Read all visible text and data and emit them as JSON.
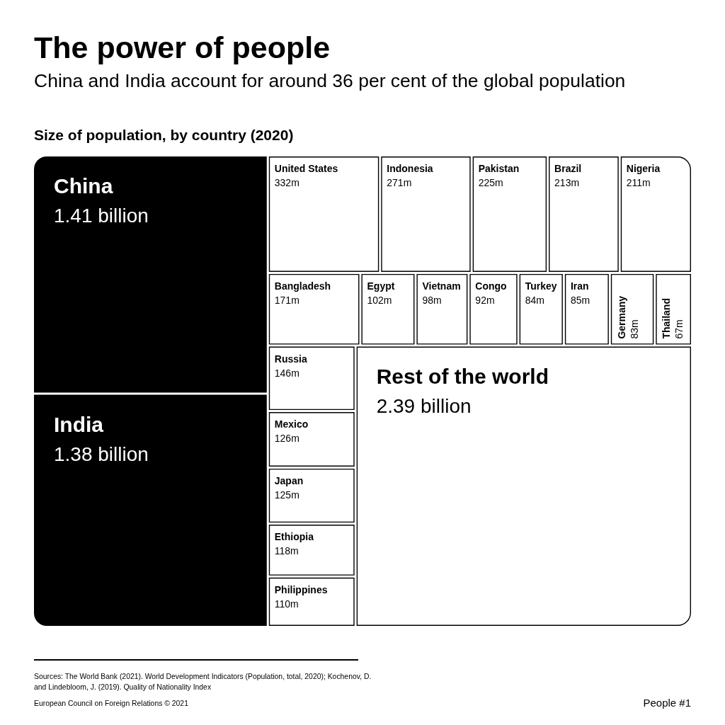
{
  "chart_data": {
    "type": "other",
    "title": "The power of people",
    "subtitle": "China and India account for around 36 per cent of the global population",
    "categories": [
      "China",
      "India",
      "United States",
      "Indonesia",
      "Pakistan",
      "Brazil",
      "Nigeria",
      "Bangladesh",
      "Egypt",
      "Vietnam",
      "Congo",
      "Turkey",
      "Iran",
      "Germany",
      "Thailand",
      "Russia",
      "Mexico",
      "Japan",
      "Ethiopia",
      "Philippines",
      "Rest of the world"
    ],
    "values": [
      1410000000,
      1380000000,
      332000000,
      271000000,
      225000000,
      213000000,
      211000000,
      171000000,
      102000000,
      98000000,
      92000000,
      84000000,
      85000000,
      83000000,
      67000000,
      146000000,
      126000000,
      125000000,
      118000000,
      110000000,
      2390000000
    ],
    "value_labels": [
      "1.41 billion",
      "1.38 billion",
      "332m",
      "271m",
      "225m",
      "213m",
      "211m",
      "171m",
      "102m",
      "98m",
      "92m",
      "84m",
      "85m",
      "83m",
      "67m",
      "146m",
      "126m",
      "125m",
      "118m",
      "110m",
      "2.39 billion"
    ],
    "colors": [
      "#000000",
      "#000000",
      "#ffffff",
      "#ffffff",
      "#ffffff",
      "#ffffff",
      "#ffffff",
      "#ffffff",
      "#ffffff",
      "#ffffff",
      "#ffffff",
      "#ffffff",
      "#ffffff",
      "#ffffff",
      "#ffffff",
      "#ffffff",
      "#ffffff",
      "#ffffff",
      "#ffffff",
      "#ffffff",
      "#ffffff"
    ],
    "annotations": [
      "Size of population, by country (2020)",
      "Sources: The World Bank (2021). World Development Indicators (Population, total, 2020); Kochenov, D. and Lindebloom, J. (2019). Quality of Nationality Index",
      "European Council on Foreign Relations © 2021",
      "People #1"
    ]
  }
}
